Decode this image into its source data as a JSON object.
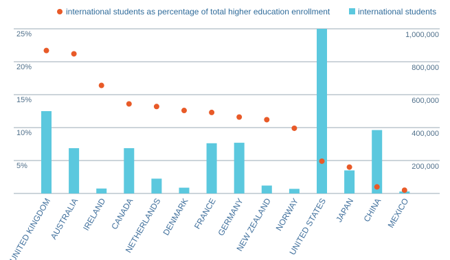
{
  "colors": {
    "bar": "#5bc8de",
    "dot": "#e85a28",
    "grid": "#9aa9b6",
    "axis_text": "#4f6f8a",
    "category_text": "#3e6e9b"
  },
  "legend": {
    "dot_label": "international students as percentage of total higher education enrollment",
    "bar_label": "international students"
  },
  "chart_data": {
    "type": "bar",
    "categories": [
      "UNITED KINGDOM",
      "AUSTRALIA",
      "IRELAND",
      "CANADA",
      "NETHERLANDS",
      "DENMARK",
      "FRANCE",
      "GERMANY",
      "NEW ZEALAND",
      "NORWAY",
      "UNITED STATES",
      "JAPAN",
      "CHINA",
      "MEXICO"
    ],
    "series": [
      {
        "name": "international students",
        "kind": "bar",
        "axis": "right",
        "values": [
          500000,
          275000,
          30000,
          275000,
          90000,
          35000,
          305000,
          308000,
          48000,
          28000,
          1000000,
          140000,
          385000,
          12000
        ]
      },
      {
        "name": "international students as percentage of total higher education enrollment",
        "kind": "scatter",
        "axis": "left",
        "values": [
          21.7,
          21.2,
          16.4,
          13.6,
          13.2,
          12.6,
          12.3,
          11.6,
          11.2,
          9.9,
          4.9,
          4.0,
          1.0,
          0.5
        ]
      }
    ],
    "left_axis": {
      "ticks": [
        "5%",
        "10%",
        "15%",
        "20%",
        "25%"
      ],
      "tick_values": [
        5,
        10,
        15,
        20,
        25
      ],
      "ylim": [
        0,
        25
      ]
    },
    "right_axis": {
      "ticks": [
        "200,000",
        "400,000",
        "600,000",
        "800,000",
        "1,000,000"
      ],
      "tick_values": [
        200000,
        400000,
        600000,
        800000,
        1000000
      ],
      "ylim": [
        0,
        1000000
      ]
    },
    "grid": true,
    "legend_position": "top-right"
  }
}
